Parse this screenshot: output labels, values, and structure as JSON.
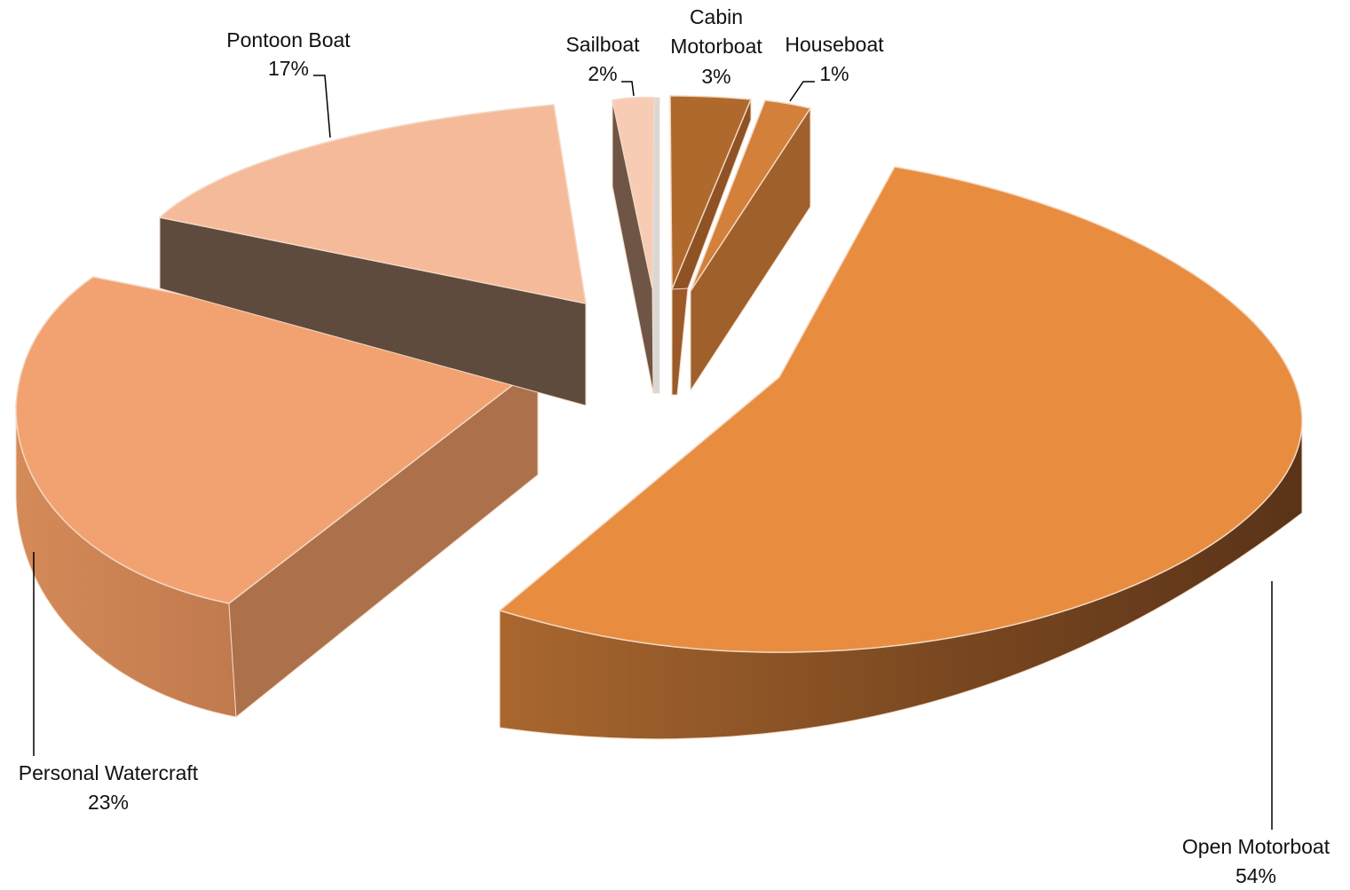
{
  "chart_data": {
    "type": "pie",
    "style": "3d-exploded",
    "title": "",
    "legend": "none",
    "slices": [
      {
        "name": "Open Motorboat",
        "value": 54,
        "label": "54%",
        "color": "#E88D40",
        "side_color": "#8A4F22"
      },
      {
        "name": "Personal Watercraft",
        "value": 23,
        "label": "23%",
        "color": "#F2A271",
        "side_color": "#AC714A"
      },
      {
        "name": "Pontoon Boat",
        "value": 17,
        "label": "17%",
        "color": "#F5BA9A",
        "side_color": "#5F4B3D"
      },
      {
        "name": "Sailboat",
        "value": 2,
        "label": "2%",
        "color": "#F8CBB5",
        "side_color": "#6E5545"
      },
      {
        "name": "Cabin Motorboat",
        "value": 3,
        "label": "3%",
        "color": "#B0692C",
        "side_color": "#8E5224"
      },
      {
        "name": "Houseboat",
        "value": 1,
        "label": "1%",
        "color": "#D2803A",
        "side_color": "#A0602B"
      }
    ]
  }
}
